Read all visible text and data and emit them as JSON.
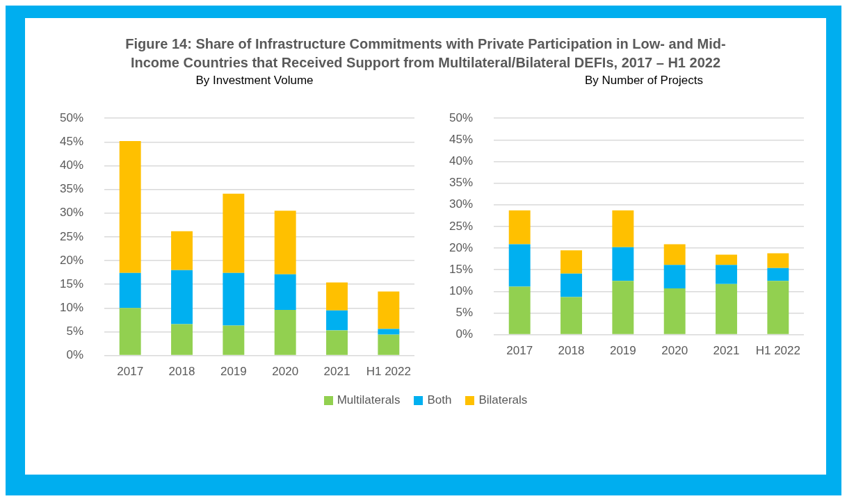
{
  "chart_data": [
    {
      "type": "bar",
      "title": "Figure 14: Share of Infrastructure Commitments with Private Participation in Low- and Mid-Income Countries that Received Support from Multilateral/Bilateral DEFIs, 2017 – H1 2022",
      "subtitle": "By Investment Volume",
      "categories": [
        "2017",
        "2018",
        "2019",
        "2020",
        "2021",
        "H1 2022"
      ],
      "stacked": true,
      "series": [
        {
          "name": "Multilaterals",
          "color": "#92d050",
          "values": [
            10.0,
            6.6,
            6.3,
            9.6,
            5.3,
            4.4
          ]
        },
        {
          "name": "Both",
          "color": "#00b0f0",
          "values": [
            7.4,
            11.4,
            11.1,
            7.5,
            4.2,
            1.2
          ]
        },
        {
          "name": "Bilaterals",
          "color": "#ffc000",
          "values": [
            27.8,
            8.2,
            16.7,
            13.4,
            5.9,
            7.9
          ]
        }
      ],
      "ylim": [
        0,
        50
      ],
      "yticks": [
        {
          "value": 0,
          "label": "0%"
        },
        {
          "value": 5,
          "label": "5%"
        },
        {
          "value": 10,
          "label": "10%"
        },
        {
          "value": 15,
          "label": "15%"
        },
        {
          "value": 20,
          "label": "20%"
        },
        {
          "value": 25,
          "label": "25%"
        },
        {
          "value": 30,
          "label": "30%"
        },
        {
          "value": 35,
          "label": "35%"
        },
        {
          "value": 40,
          "label": "40%"
        },
        {
          "value": 45,
          "label": "45%"
        },
        {
          "value": 50,
          "label": "50%"
        }
      ],
      "grid": "y",
      "legend": "bottom"
    },
    {
      "type": "bar",
      "subtitle": "By Number of Projects",
      "categories": [
        "2017",
        "2018",
        "2019",
        "2020",
        "2021",
        "H1 2022"
      ],
      "stacked": true,
      "series": [
        {
          "color": "#92d050",
          "values": [
            11.1,
            8.7,
            12.4,
            10.7,
            11.7,
            12.4
          ]
        },
        {
          "color": "#00b0f0",
          "values": [
            9.8,
            5.4,
            7.8,
            5.4,
            4.4,
            3.0
          ]
        },
        {
          "color": "#ffc000",
          "values": [
            7.8,
            5.4,
            8.5,
            4.8,
            2.4,
            3.4
          ]
        }
      ],
      "ylim": [
        0,
        50
      ],
      "yticks": [
        {
          "value": 0,
          "label": "0%"
        },
        {
          "value": 5,
          "label": "5%"
        },
        {
          "value": 10,
          "label": "10%"
        },
        {
          "value": 15,
          "label": "15%"
        },
        {
          "value": 20,
          "label": "20%"
        },
        {
          "value": 25,
          "label": "25%"
        },
        {
          "value": 30,
          "label": "30%"
        },
        {
          "value": 35,
          "label": "35%"
        },
        {
          "value": 40,
          "label": "40%"
        },
        {
          "value": 45,
          "label": "45%"
        },
        {
          "value": 50,
          "label": "50%"
        }
      ],
      "grid": "y"
    }
  ]
}
